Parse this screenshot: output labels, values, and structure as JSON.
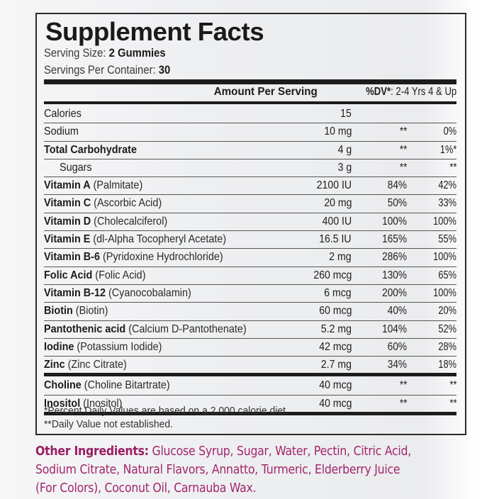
{
  "label": {
    "title": "Supplement Facts",
    "serving_size_label": "Serving Size:",
    "serving_size_value": "2 Gummies",
    "servings_per_container_label": "Servings Per Container:",
    "servings_per_container_value": "30",
    "header": {
      "amount_per_serving": "Amount Per Serving",
      "dv_label": "%DV*",
      "dv_groups": ": 2-4 Yrs  4 & Up"
    },
    "rows": [
      {
        "name": "Calories",
        "source": "",
        "amount": "15",
        "dv_2_4": "",
        "dv_4_up": ""
      },
      {
        "name": "Sodium",
        "source": "",
        "amount": "10 mg",
        "dv_2_4": "**",
        "dv_4_up": "0%"
      },
      {
        "name": "Total Carbohydrate",
        "source": "",
        "amount": "4 g",
        "dv_2_4": "**",
        "dv_4_up": "1%*"
      },
      {
        "name": "Sugars",
        "source": "",
        "amount": "3 g",
        "dv_2_4": "**",
        "dv_4_up": "**"
      },
      {
        "name": "Vitamin A",
        "source": " (Palmitate)",
        "amount": "2100 IU",
        "dv_2_4": "84%",
        "dv_4_up": "42%"
      },
      {
        "name": "Vitamin C",
        "source": " (Ascorbic Acid)",
        "amount": "20 mg",
        "dv_2_4": "50%",
        "dv_4_up": "33%"
      },
      {
        "name": "Vitamin D",
        "source": " (Cholecalciferol)",
        "amount": "400 IU",
        "dv_2_4": "100%",
        "dv_4_up": "100%"
      },
      {
        "name": "Vitamin E",
        "source": " (dl-Alpha Tocopheryl Acetate)",
        "amount": "16.5 IU",
        "dv_2_4": "165%",
        "dv_4_up": "55%"
      },
      {
        "name": "Vitamin B-6",
        "source": " (Pyridoxine Hydrochloride)",
        "amount": "2 mg",
        "dv_2_4": "286%",
        "dv_4_up": "100%"
      },
      {
        "name": "Folic Acid",
        "source": " (Folic Acid)",
        "amount": "260 mcg",
        "dv_2_4": "130%",
        "dv_4_up": "65%"
      },
      {
        "name": "Vitamin B-12",
        "source": " (Cyanocobalamin)",
        "amount": "6 mcg",
        "dv_2_4": "200%",
        "dv_4_up": "100%"
      },
      {
        "name": "Biotin",
        "source": " (Biotin)",
        "amount": "60 mcg",
        "dv_2_4": "40%",
        "dv_4_up": "20%"
      },
      {
        "name": "Pantothenic acid",
        "source": " (Calcium D-Pantothenate)",
        "amount": "5.2 mg",
        "dv_2_4": "104%",
        "dv_4_up": "52%"
      },
      {
        "name": "Iodine",
        "source": " (Potassium Iodide)",
        "amount": "42 mcg",
        "dv_2_4": "60%",
        "dv_4_up": "28%"
      },
      {
        "name": "Zinc",
        "source": " (Zinc Citrate)",
        "amount": "2.7 mg",
        "dv_2_4": "34%",
        "dv_4_up": "18%"
      },
      {
        "name": "Choline",
        "source": " (Choline Bitartrate)",
        "amount": "40 mcg",
        "dv_2_4": "**",
        "dv_4_up": "**"
      },
      {
        "name": "Inositol",
        "source": " (Inositol)",
        "amount": "40 mcg",
        "dv_2_4": "**",
        "dv_4_up": "**"
      }
    ],
    "footnote_1": "*Percent Daily Values are based on a 2,000 calorie diet.",
    "footnote_2": "**Daily Value not established."
  },
  "other_ingredients": {
    "label": "Other Ingredients:",
    "text": " Glucose Syrup, Sugar, Water, Pectin, Citric Acid, Sodium Citrate, Natural Flavors, Annatto, Turmeric, Elderberry Juice (For Colors), Coconut Oil, Carnauba Wax."
  },
  "colors": {
    "ink": "#1c1c1c",
    "accent_magenta": "#a2266c",
    "background": "#eeeff1"
  }
}
